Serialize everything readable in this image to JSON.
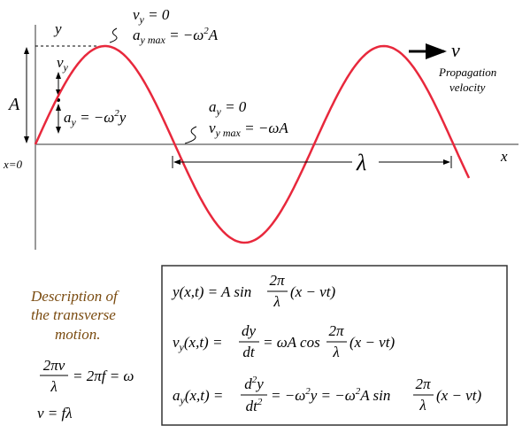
{
  "axes": {
    "y_label": "y",
    "x_label": "x",
    "origin": "x=0",
    "amplitude": "A",
    "wavelength": "λ"
  },
  "crest_note": {
    "vy": [
      "v",
      "y",
      " = 0"
    ],
    "ay": [
      "a",
      "y max",
      " = −ω",
      "2",
      "A"
    ]
  },
  "node_note": {
    "ay": [
      "a",
      "y",
      " = 0"
    ],
    "vy": [
      "v",
      "y max",
      " = −ωA"
    ]
  },
  "side_note": {
    "vy": [
      "v",
      "y"
    ],
    "ay": [
      "a",
      "y",
      " = −ω",
      "2",
      "y"
    ]
  },
  "propagation": {
    "symbol": "v",
    "caption": [
      "Propagation",
      "velocity"
    ]
  },
  "description": {
    "lines": [
      "Description of",
      "the transverse",
      "motion."
    ],
    "relation1": {
      "num": "2πv",
      "den": "λ",
      "rest": "= 2πf = ω"
    },
    "relation2": "v = fλ"
  },
  "equations": [
    {
      "lhs": "y(x,t) = A sin",
      "k": {
        "num": "2π",
        "den": "λ"
      },
      "arg": "(x − vt)"
    },
    {
      "lhs": [
        "v",
        "y",
        "(x,t) ="
      ],
      "deriv": {
        "num": "dy",
        "den": "dt"
      },
      "mid": "= ωA cos",
      "k": {
        "num": "2π",
        "den": "λ"
      },
      "arg": "(x − vt)"
    },
    {
      "lhs": [
        "a",
        "y",
        "(x,t) ="
      ],
      "deriv": {
        "num": [
          "d",
          "2",
          "y"
        ],
        "den": [
          "dt",
          "2"
        ]
      },
      "mid": [
        "= −ω",
        "2",
        "y = −ω",
        "2",
        "A sin"
      ],
      "k": {
        "num": "2π",
        "den": "λ"
      },
      "arg": "(x − vt)"
    }
  ]
}
